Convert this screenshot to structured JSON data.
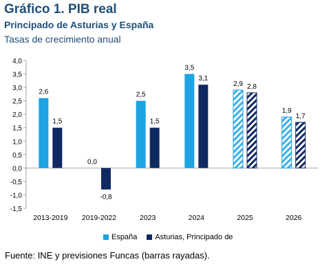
{
  "header": {
    "title": "Gráfico 1. PIB real",
    "subtitle": "Principado de Asturias y España",
    "subtitle2": "Tasas de crecimiento anual"
  },
  "colors": {
    "spain": "#1ea3e3",
    "asturias": "#0f2a63",
    "spain_hatch": "#3ab0e8",
    "asturias_hatch": "#0f2a63",
    "axis": "#a6a6a6",
    "text": "#1f4e79"
  },
  "legend": {
    "spain_label": "España",
    "asturias_label": "Asturias, Principado de"
  },
  "source": "Fuente: INE y previsiones Funcas (barras rayadas).",
  "chart_data": {
    "type": "bar",
    "categories": [
      "2013-2019",
      "2019-2022",
      "2023",
      "2024",
      "2025",
      "2026"
    ],
    "series": [
      {
        "name": "España",
        "values": [
          2.6,
          0.0,
          2.5,
          3.5,
          2.9,
          1.9
        ],
        "labels": [
          "2,6",
          "0,0",
          "2,5",
          "3,5",
          "2,9",
          "1,9"
        ]
      },
      {
        "name": "Asturias, Principado de",
        "values": [
          1.5,
          -0.8,
          1.5,
          3.1,
          2.8,
          1.7
        ],
        "labels": [
          "1,5",
          "-0,8",
          "1,5",
          "3,1",
          "2,8",
          "1,7"
        ]
      }
    ],
    "forecast_categories": [
      "2025",
      "2026"
    ],
    "ylim": [
      -1.5,
      4.0
    ],
    "yticks": [
      -1.5,
      -1.0,
      -0.5,
      0.0,
      0.5,
      1.0,
      1.5,
      2.0,
      2.5,
      3.0,
      3.5,
      4.0
    ],
    "ytick_labels": [
      "-1,5",
      "-1,0",
      "-0,5",
      "0,0",
      "0,5",
      "1,0",
      "1,5",
      "2,0",
      "2,5",
      "3,0",
      "3,5",
      "4,0"
    ],
    "grid": false,
    "legend_position": "bottom"
  }
}
